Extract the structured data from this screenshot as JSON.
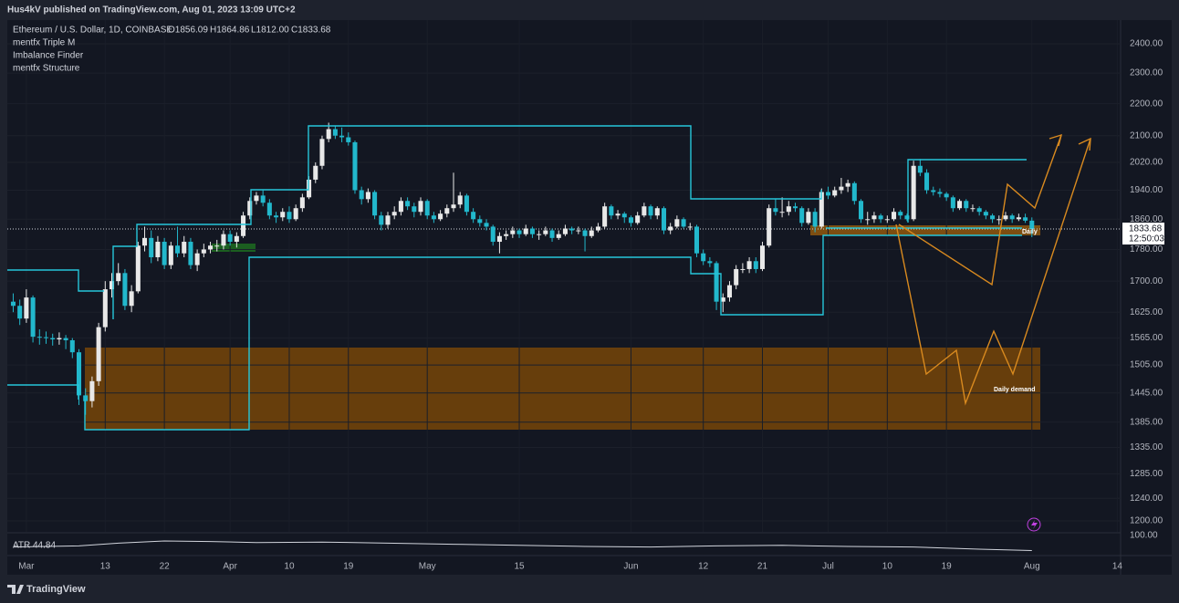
{
  "header": {
    "publisher": "Hus4kV published on TradingView.com, Aug 01, 2023 13:09 UTC+2"
  },
  "legend": {
    "symbol": "Ethereum / U.S. Dollar, 1D, COINBASE",
    "ohlc": [
      "O1856.09",
      "H1864.86",
      "L1812.00",
      "C1833.68"
    ],
    "indicators": [
      "mentfx Triple M",
      "Imbalance Finder",
      "mentfx Structure"
    ]
  },
  "chart_data": {
    "type": "candlestick",
    "ohlc": [
      [
        1650,
        1670,
        1625,
        1640
      ],
      [
        1640,
        1655,
        1595,
        1610
      ],
      [
        1610,
        1680,
        1600,
        1660
      ],
      [
        1660,
        1665,
        1555,
        1568
      ],
      [
        1568,
        1585,
        1550,
        1567
      ],
      [
        1567,
        1580,
        1552,
        1565
      ],
      [
        1565,
        1575,
        1548,
        1562
      ],
      [
        1562,
        1578,
        1550,
        1565
      ],
      [
        1565,
        1572,
        1540,
        1560
      ],
      [
        1560,
        1565,
        1520,
        1533
      ],
      [
        1533,
        1540,
        1420,
        1440
      ],
      [
        1440,
        1455,
        1400,
        1428
      ],
      [
        1428,
        1480,
        1415,
        1470
      ],
      [
        1470,
        1600,
        1460,
        1590
      ],
      [
        1590,
        1700,
        1580,
        1680
      ],
      [
        1680,
        1720,
        1660,
        1700
      ],
      [
        1700,
        1745,
        1690,
        1720
      ],
      [
        1720,
        1730,
        1630,
        1640
      ],
      [
        1640,
        1690,
        1625,
        1675
      ],
      [
        1675,
        1800,
        1670,
        1790
      ],
      [
        1790,
        1840,
        1775,
        1810
      ],
      [
        1810,
        1830,
        1745,
        1760
      ],
      [
        1760,
        1815,
        1750,
        1800
      ],
      [
        1800,
        1810,
        1730,
        1740
      ],
      [
        1740,
        1800,
        1730,
        1790
      ],
      [
        1790,
        1840,
        1760,
        1770
      ],
      [
        1770,
        1815,
        1760,
        1800
      ],
      [
        1800,
        1810,
        1730,
        1740
      ],
      [
        1740,
        1780,
        1725,
        1770
      ],
      [
        1770,
        1795,
        1760,
        1780
      ],
      [
        1780,
        1800,
        1770,
        1790
      ],
      [
        1790,
        1805,
        1775,
        1790
      ],
      [
        1790,
        1830,
        1780,
        1820
      ],
      [
        1820,
        1830,
        1790,
        1800
      ],
      [
        1800,
        1825,
        1785,
        1815
      ],
      [
        1815,
        1880,
        1810,
        1870
      ],
      [
        1870,
        1920,
        1860,
        1910
      ],
      [
        1910,
        1935,
        1900,
        1925
      ],
      [
        1925,
        1940,
        1895,
        1905
      ],
      [
        1905,
        1915,
        1860,
        1870
      ],
      [
        1870,
        1880,
        1850,
        1865
      ],
      [
        1865,
        1890,
        1855,
        1880
      ],
      [
        1880,
        1895,
        1850,
        1860
      ],
      [
        1860,
        1900,
        1855,
        1890
      ],
      [
        1890,
        1930,
        1880,
        1920
      ],
      [
        1920,
        1980,
        1915,
        1970
      ],
      [
        1970,
        2020,
        1960,
        2010
      ],
      [
        2010,
        2100,
        2000,
        2090
      ],
      [
        2090,
        2140,
        2080,
        2120
      ],
      [
        2120,
        2130,
        2090,
        2100
      ],
      [
        2100,
        2125,
        2080,
        2095
      ],
      [
        2095,
        2110,
        2070,
        2080
      ],
      [
        2080,
        2085,
        1930,
        1940
      ],
      [
        1940,
        1950,
        1900,
        1915
      ],
      [
        1915,
        1945,
        1905,
        1935
      ],
      [
        1935,
        1940,
        1860,
        1870
      ],
      [
        1870,
        1880,
        1830,
        1845
      ],
      [
        1845,
        1880,
        1835,
        1870
      ],
      [
        1870,
        1895,
        1860,
        1880
      ],
      [
        1880,
        1920,
        1870,
        1910
      ],
      [
        1910,
        1920,
        1885,
        1895
      ],
      [
        1895,
        1905,
        1865,
        1880
      ],
      [
        1880,
        1920,
        1870,
        1910
      ],
      [
        1910,
        1915,
        1860,
        1870
      ],
      [
        1870,
        1880,
        1850,
        1860
      ],
      [
        1860,
        1885,
        1855,
        1875
      ],
      [
        1875,
        1900,
        1865,
        1890
      ],
      [
        1890,
        1990,
        1880,
        1900
      ],
      [
        1900,
        1935,
        1890,
        1925
      ],
      [
        1925,
        1930,
        1870,
        1880
      ],
      [
        1880,
        1890,
        1850,
        1860
      ],
      [
        1860,
        1870,
        1840,
        1850
      ],
      [
        1850,
        1860,
        1830,
        1840
      ],
      [
        1840,
        1845,
        1790,
        1800
      ],
      [
        1800,
        1825,
        1770,
        1815
      ],
      [
        1815,
        1830,
        1805,
        1820
      ],
      [
        1820,
        1840,
        1810,
        1830
      ],
      [
        1830,
        1835,
        1810,
        1820
      ],
      [
        1820,
        1845,
        1815,
        1835
      ],
      [
        1835,
        1840,
        1810,
        1820
      ],
      [
        1820,
        1830,
        1805,
        1820
      ],
      [
        1820,
        1840,
        1815,
        1830
      ],
      [
        1830,
        1835,
        1800,
        1810
      ],
      [
        1810,
        1830,
        1805,
        1820
      ],
      [
        1820,
        1845,
        1815,
        1835
      ],
      [
        1835,
        1840,
        1820,
        1830
      ],
      [
        1830,
        1840,
        1820,
        1830
      ],
      [
        1830,
        1835,
        1775,
        1815
      ],
      [
        1815,
        1840,
        1810,
        1830
      ],
      [
        1830,
        1850,
        1825,
        1840
      ],
      [
        1840,
        1905,
        1835,
        1895
      ],
      [
        1895,
        1900,
        1860,
        1870
      ],
      [
        1870,
        1885,
        1860,
        1875
      ],
      [
        1875,
        1880,
        1850,
        1865
      ],
      [
        1865,
        1870,
        1840,
        1850
      ],
      [
        1850,
        1880,
        1845,
        1870
      ],
      [
        1870,
        1905,
        1865,
        1895
      ],
      [
        1895,
        1900,
        1860,
        1870
      ],
      [
        1870,
        1895,
        1860,
        1890
      ],
      [
        1890,
        1895,
        1820,
        1830
      ],
      [
        1830,
        1850,
        1820,
        1840
      ],
      [
        1840,
        1870,
        1835,
        1860
      ],
      [
        1860,
        1865,
        1835,
        1840
      ],
      [
        1840,
        1850,
        1830,
        1840
      ],
      [
        1840,
        1845,
        1760,
        1770
      ],
      [
        1770,
        1780,
        1740,
        1750
      ],
      [
        1750,
        1760,
        1735,
        1745
      ],
      [
        1745,
        1750,
        1630,
        1650
      ],
      [
        1650,
        1670,
        1625,
        1660
      ],
      [
        1660,
        1700,
        1650,
        1690
      ],
      [
        1690,
        1740,
        1680,
        1730
      ],
      [
        1730,
        1745,
        1720,
        1730
      ],
      [
        1730,
        1760,
        1720,
        1750
      ],
      [
        1750,
        1760,
        1720,
        1730
      ],
      [
        1730,
        1800,
        1725,
        1790
      ],
      [
        1790,
        1900,
        1785,
        1890
      ],
      [
        1890,
        1915,
        1870,
        1880
      ],
      [
        1880,
        1920,
        1865,
        1880
      ],
      [
        1880,
        1910,
        1870,
        1895
      ],
      [
        1895,
        1905,
        1880,
        1890
      ],
      [
        1890,
        1895,
        1840,
        1850
      ],
      [
        1850,
        1890,
        1845,
        1880
      ],
      [
        1880,
        1890,
        1825,
        1840
      ],
      [
        1840,
        1945,
        1835,
        1935
      ],
      [
        1935,
        1950,
        1915,
        1925
      ],
      [
        1925,
        1950,
        1920,
        1940
      ],
      [
        1940,
        1975,
        1930,
        1950
      ],
      [
        1950,
        1970,
        1935,
        1960
      ],
      [
        1960,
        1965,
        1900,
        1910
      ],
      [
        1910,
        1915,
        1850,
        1860
      ],
      [
        1860,
        1880,
        1845,
        1860
      ],
      [
        1860,
        1880,
        1850,
        1870
      ],
      [
        1870,
        1875,
        1850,
        1860
      ],
      [
        1860,
        1870,
        1850,
        1860
      ],
      [
        1860,
        1890,
        1855,
        1880
      ],
      [
        1880,
        1885,
        1860,
        1870
      ],
      [
        1870,
        1875,
        1855,
        1860
      ],
      [
        1860,
        2025,
        1855,
        2010
      ],
      [
        2010,
        2030,
        1980,
        1990
      ],
      [
        1990,
        2000,
        1930,
        1940
      ],
      [
        1940,
        1950,
        1925,
        1935
      ],
      [
        1935,
        1945,
        1920,
        1930
      ],
      [
        1930,
        1935,
        1910,
        1920
      ],
      [
        1920,
        1925,
        1880,
        1890
      ],
      [
        1890,
        1915,
        1885,
        1910
      ],
      [
        1910,
        1915,
        1880,
        1890
      ],
      [
        1890,
        1900,
        1880,
        1890
      ],
      [
        1890,
        1895,
        1870,
        1880
      ],
      [
        1880,
        1885,
        1860,
        1870
      ],
      [
        1870,
        1875,
        1850,
        1860
      ],
      [
        1860,
        1870,
        1845,
        1860
      ],
      [
        1860,
        1880,
        1855,
        1870
      ],
      [
        1870,
        1875,
        1850,
        1860
      ],
      [
        1860,
        1875,
        1855,
        1865
      ],
      [
        1865,
        1875,
        1850,
        1856.09
      ],
      [
        1856.09,
        1864.86,
        1812,
        1833.68
      ]
    ],
    "first_x": -2,
    "xlim": [
      -2.9,
      166.5
    ],
    "xticks": [
      {
        "value": 0,
        "label": "Mar"
      },
      {
        "value": 12,
        "label": "13"
      },
      {
        "value": 21,
        "label": "22"
      },
      {
        "value": 31,
        "label": "Apr"
      },
      {
        "value": 40,
        "label": "10"
      },
      {
        "value": 49,
        "label": "19"
      },
      {
        "value": 61,
        "label": "May"
      },
      {
        "value": 75,
        "label": "15"
      },
      {
        "value": 92,
        "label": "Jun"
      },
      {
        "value": 103,
        "label": "12"
      },
      {
        "value": 112,
        "label": "21"
      },
      {
        "value": 122,
        "label": "Jul"
      },
      {
        "value": 131,
        "label": "10"
      },
      {
        "value": 140,
        "label": "19"
      },
      {
        "value": 153,
        "label": "Aug"
      },
      {
        "value": 166,
        "label": "14"
      }
    ],
    "ylim": [
      1181,
      2484
    ],
    "log": true,
    "yticks": [
      {
        "value": 2400,
        "label": "2400.00"
      },
      {
        "value": 2300,
        "label": "2300.00"
      },
      {
        "value": 2200,
        "label": "2200.00"
      },
      {
        "value": 2100,
        "label": "2100.00"
      },
      {
        "value": 2020,
        "label": "2020.00"
      },
      {
        "value": 1940,
        "label": "1940.00"
      },
      {
        "value": 1860,
        "label": "1860.00"
      },
      {
        "value": 1780,
        "label": "1780.00"
      },
      {
        "value": 1700,
        "label": "1700.00"
      },
      {
        "value": 1625,
        "label": "1625.00"
      },
      {
        "value": 1565,
        "label": "1565.00"
      },
      {
        "value": 1505,
        "label": "1505.00"
      },
      {
        "value": 1445,
        "label": "1445.00"
      },
      {
        "value": 1385,
        "label": "1385.00"
      },
      {
        "value": 1335,
        "label": "1335.00"
      },
      {
        "value": 1285,
        "label": "1285.00"
      },
      {
        "value": 1240,
        "label": "1240.00"
      },
      {
        "value": 1200,
        "label": "1200.00"
      }
    ],
    "up_color": "#e8e8e8",
    "down_color": "#22b8cc",
    "last_price": 1833.68,
    "countdown": "12:50:03",
    "annotations": [
      "Daily demand",
      "Daily"
    ]
  },
  "atr": {
    "name": "ATR",
    "color": "#d1d4dc",
    "x": [
      -2,
      8,
      14,
      21,
      28,
      35,
      45,
      55,
      65,
      75,
      85,
      95,
      105,
      115,
      125,
      135,
      145,
      153
    ],
    "values": [
      58,
      62,
      72,
      80,
      78,
      74,
      76,
      72,
      68,
      64,
      60,
      58,
      62,
      64,
      60,
      58,
      50,
      44.84
    ],
    "ylim": [
      30,
      110
    ],
    "yticks": [
      {
        "value": 100,
        "label": "100.00"
      }
    ]
  },
  "footer": {
    "brand": "TradingView"
  }
}
